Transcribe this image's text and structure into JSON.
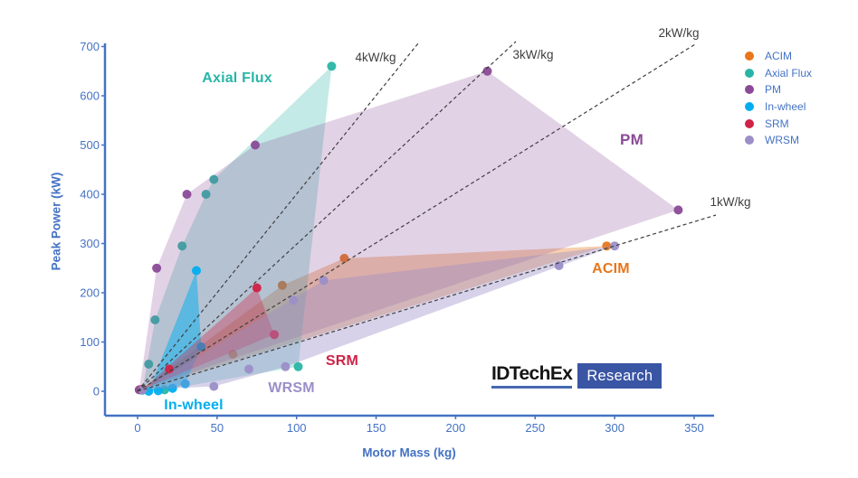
{
  "chart_data": {
    "type": "scatter",
    "title": "",
    "xlabel": "Motor Mass (kg)",
    "ylabel": "Peak Power (kW)",
    "xlim": [
      0,
      350
    ],
    "ylim": [
      0,
      700
    ],
    "x_ticks": [
      0,
      50,
      100,
      150,
      200,
      250,
      300,
      350
    ],
    "y_ticks": [
      0,
      100,
      200,
      300,
      400,
      500,
      600,
      700
    ],
    "grid": false,
    "legend_position": "top-right",
    "axis_color": "#4472C4",
    "guide_line_color": "#3F3F3F",
    "series": [
      {
        "name": "ACIM",
        "label": "ACIM",
        "color": "#E8761B",
        "fill_opacity": 0.35,
        "points": [
          [
            2,
            3
          ],
          [
            60,
            75
          ],
          [
            91,
            215
          ],
          [
            130,
            270
          ],
          [
            295,
            295
          ]
        ]
      },
      {
        "name": "Axial Flux",
        "label": "Axial Flux",
        "color": "#29B5A5",
        "fill_opacity": 0.28,
        "points": [
          [
            3,
            2
          ],
          [
            7,
            55
          ],
          [
            11,
            145
          ],
          [
            17,
            3
          ],
          [
            28,
            295
          ],
          [
            43,
            400
          ],
          [
            48,
            430
          ],
          [
            101,
            50
          ],
          [
            122,
            660
          ]
        ]
      },
      {
        "name": "PM",
        "label": "PM",
        "color": "#8B4A97",
        "fill_opacity": 0.25,
        "points": [
          [
            1,
            3
          ],
          [
            12,
            250
          ],
          [
            31,
            400
          ],
          [
            74,
            500
          ],
          [
            220,
            650
          ],
          [
            340,
            368
          ]
        ]
      },
      {
        "name": "In-wheel",
        "label": "In-wheel",
        "color": "#00AEEF",
        "fill_opacity": 0.5,
        "points": [
          [
            7,
            0
          ],
          [
            13,
            1
          ],
          [
            22,
            6
          ],
          [
            30,
            15
          ],
          [
            40,
            90
          ],
          [
            37,
            245
          ]
        ]
      },
      {
        "name": "SRM",
        "label": "SRM",
        "color": "#D02246",
        "fill_opacity": 0.35,
        "points": [
          [
            3,
            4
          ],
          [
            20,
            45
          ],
          [
            75,
            210
          ],
          [
            86,
            115
          ]
        ]
      },
      {
        "name": "WRSM",
        "label": "WRSM",
        "color": "#9B8FC8",
        "fill_opacity": 0.4,
        "points": [
          [
            3,
            3
          ],
          [
            48,
            10
          ],
          [
            70,
            45
          ],
          [
            93,
            50
          ],
          [
            98,
            185
          ],
          [
            117,
            225
          ],
          [
            265,
            255
          ],
          [
            300,
            295
          ]
        ]
      }
    ],
    "guide_lines": [
      {
        "label": "4kW/kg",
        "slope_kw_per_kg": 4
      },
      {
        "label": "3kW/kg",
        "slope_kw_per_kg": 3
      },
      {
        "label": "2kW/kg",
        "slope_kw_per_kg": 2
      },
      {
        "label": "1kW/kg",
        "slope_kw_per_kg": 1
      }
    ]
  },
  "logo": {
    "brand": "IDTechEx",
    "suffix": "Research",
    "underline_color": "#4868B1",
    "box_color": "#3A55A4"
  }
}
